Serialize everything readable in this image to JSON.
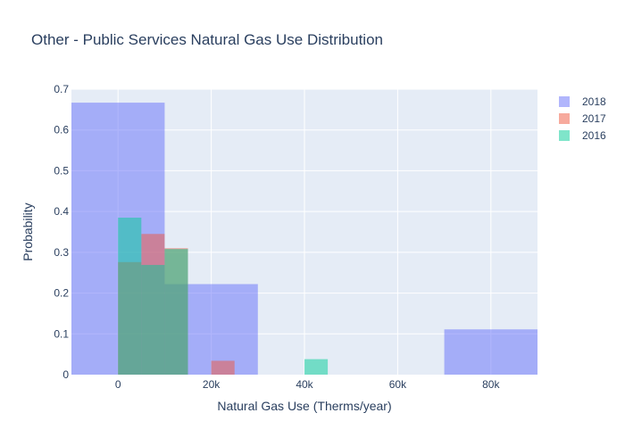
{
  "chart_data": {
    "type": "histogram",
    "title": "Other - Public Services Natural Gas Use Distribution",
    "xlabel": "Natural Gas Use (Therms/year)",
    "ylabel": "Probability",
    "xlim": [
      -10000,
      90000
    ],
    "ylim": [
      0,
      0.7
    ],
    "xticks": [
      0,
      20000,
      40000,
      60000,
      80000
    ],
    "xtick_labels": [
      "0",
      "20k",
      "40k",
      "60k",
      "80k"
    ],
    "yticks": [
      0,
      0.1,
      0.2,
      0.3,
      0.4,
      0.5,
      0.6,
      0.7
    ],
    "ytick_labels": [
      "0",
      "0.1",
      "0.2",
      "0.3",
      "0.4",
      "0.5",
      "0.6",
      "0.7"
    ],
    "grid": true,
    "legend_position": "top-right",
    "series": [
      {
        "name": "2018",
        "color": "#636efa",
        "bins": [
          {
            "x0": -10000,
            "x1": 10000,
            "y": 0.667
          },
          {
            "x0": 10000,
            "x1": 30000,
            "y": 0.222
          },
          {
            "x0": 70000,
            "x1": 90000,
            "y": 0.111
          }
        ]
      },
      {
        "name": "2017",
        "color": "#ef553b",
        "bins": [
          {
            "x0": 0,
            "x1": 5000,
            "y": 0.276
          },
          {
            "x0": 5000,
            "x1": 10000,
            "y": 0.345
          },
          {
            "x0": 10000,
            "x1": 15000,
            "y": 0.31
          },
          {
            "x0": 20000,
            "x1": 25000,
            "y": 0.034
          }
        ]
      },
      {
        "name": "2016",
        "color": "#00cc96",
        "bins": [
          {
            "x0": 0,
            "x1": 5000,
            "y": 0.385
          },
          {
            "x0": 5000,
            "x1": 10000,
            "y": 0.269
          },
          {
            "x0": 10000,
            "x1": 15000,
            "y": 0.308
          },
          {
            "x0": 40000,
            "x1": 45000,
            "y": 0.038
          }
        ]
      }
    ]
  }
}
